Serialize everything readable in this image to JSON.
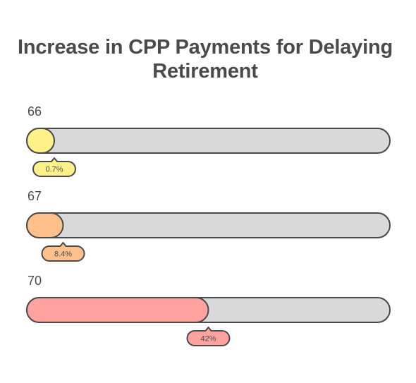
{
  "chart_data": {
    "type": "bar",
    "orientation": "horizontal",
    "title": "Increase in CPP Payments for Delaying Retirement",
    "categories": [
      "66",
      "67",
      "70"
    ],
    "values": [
      0.7,
      8.4,
      42
    ],
    "value_labels": [
      "0.7%",
      "8.4%",
      "42%"
    ],
    "xlim": [
      0,
      84
    ],
    "colors": [
      "#fff18a",
      "#ffc08b",
      "#ffa3a1"
    ],
    "track_color": "#d9d9d9",
    "outline_color": "#4a4a4a"
  }
}
